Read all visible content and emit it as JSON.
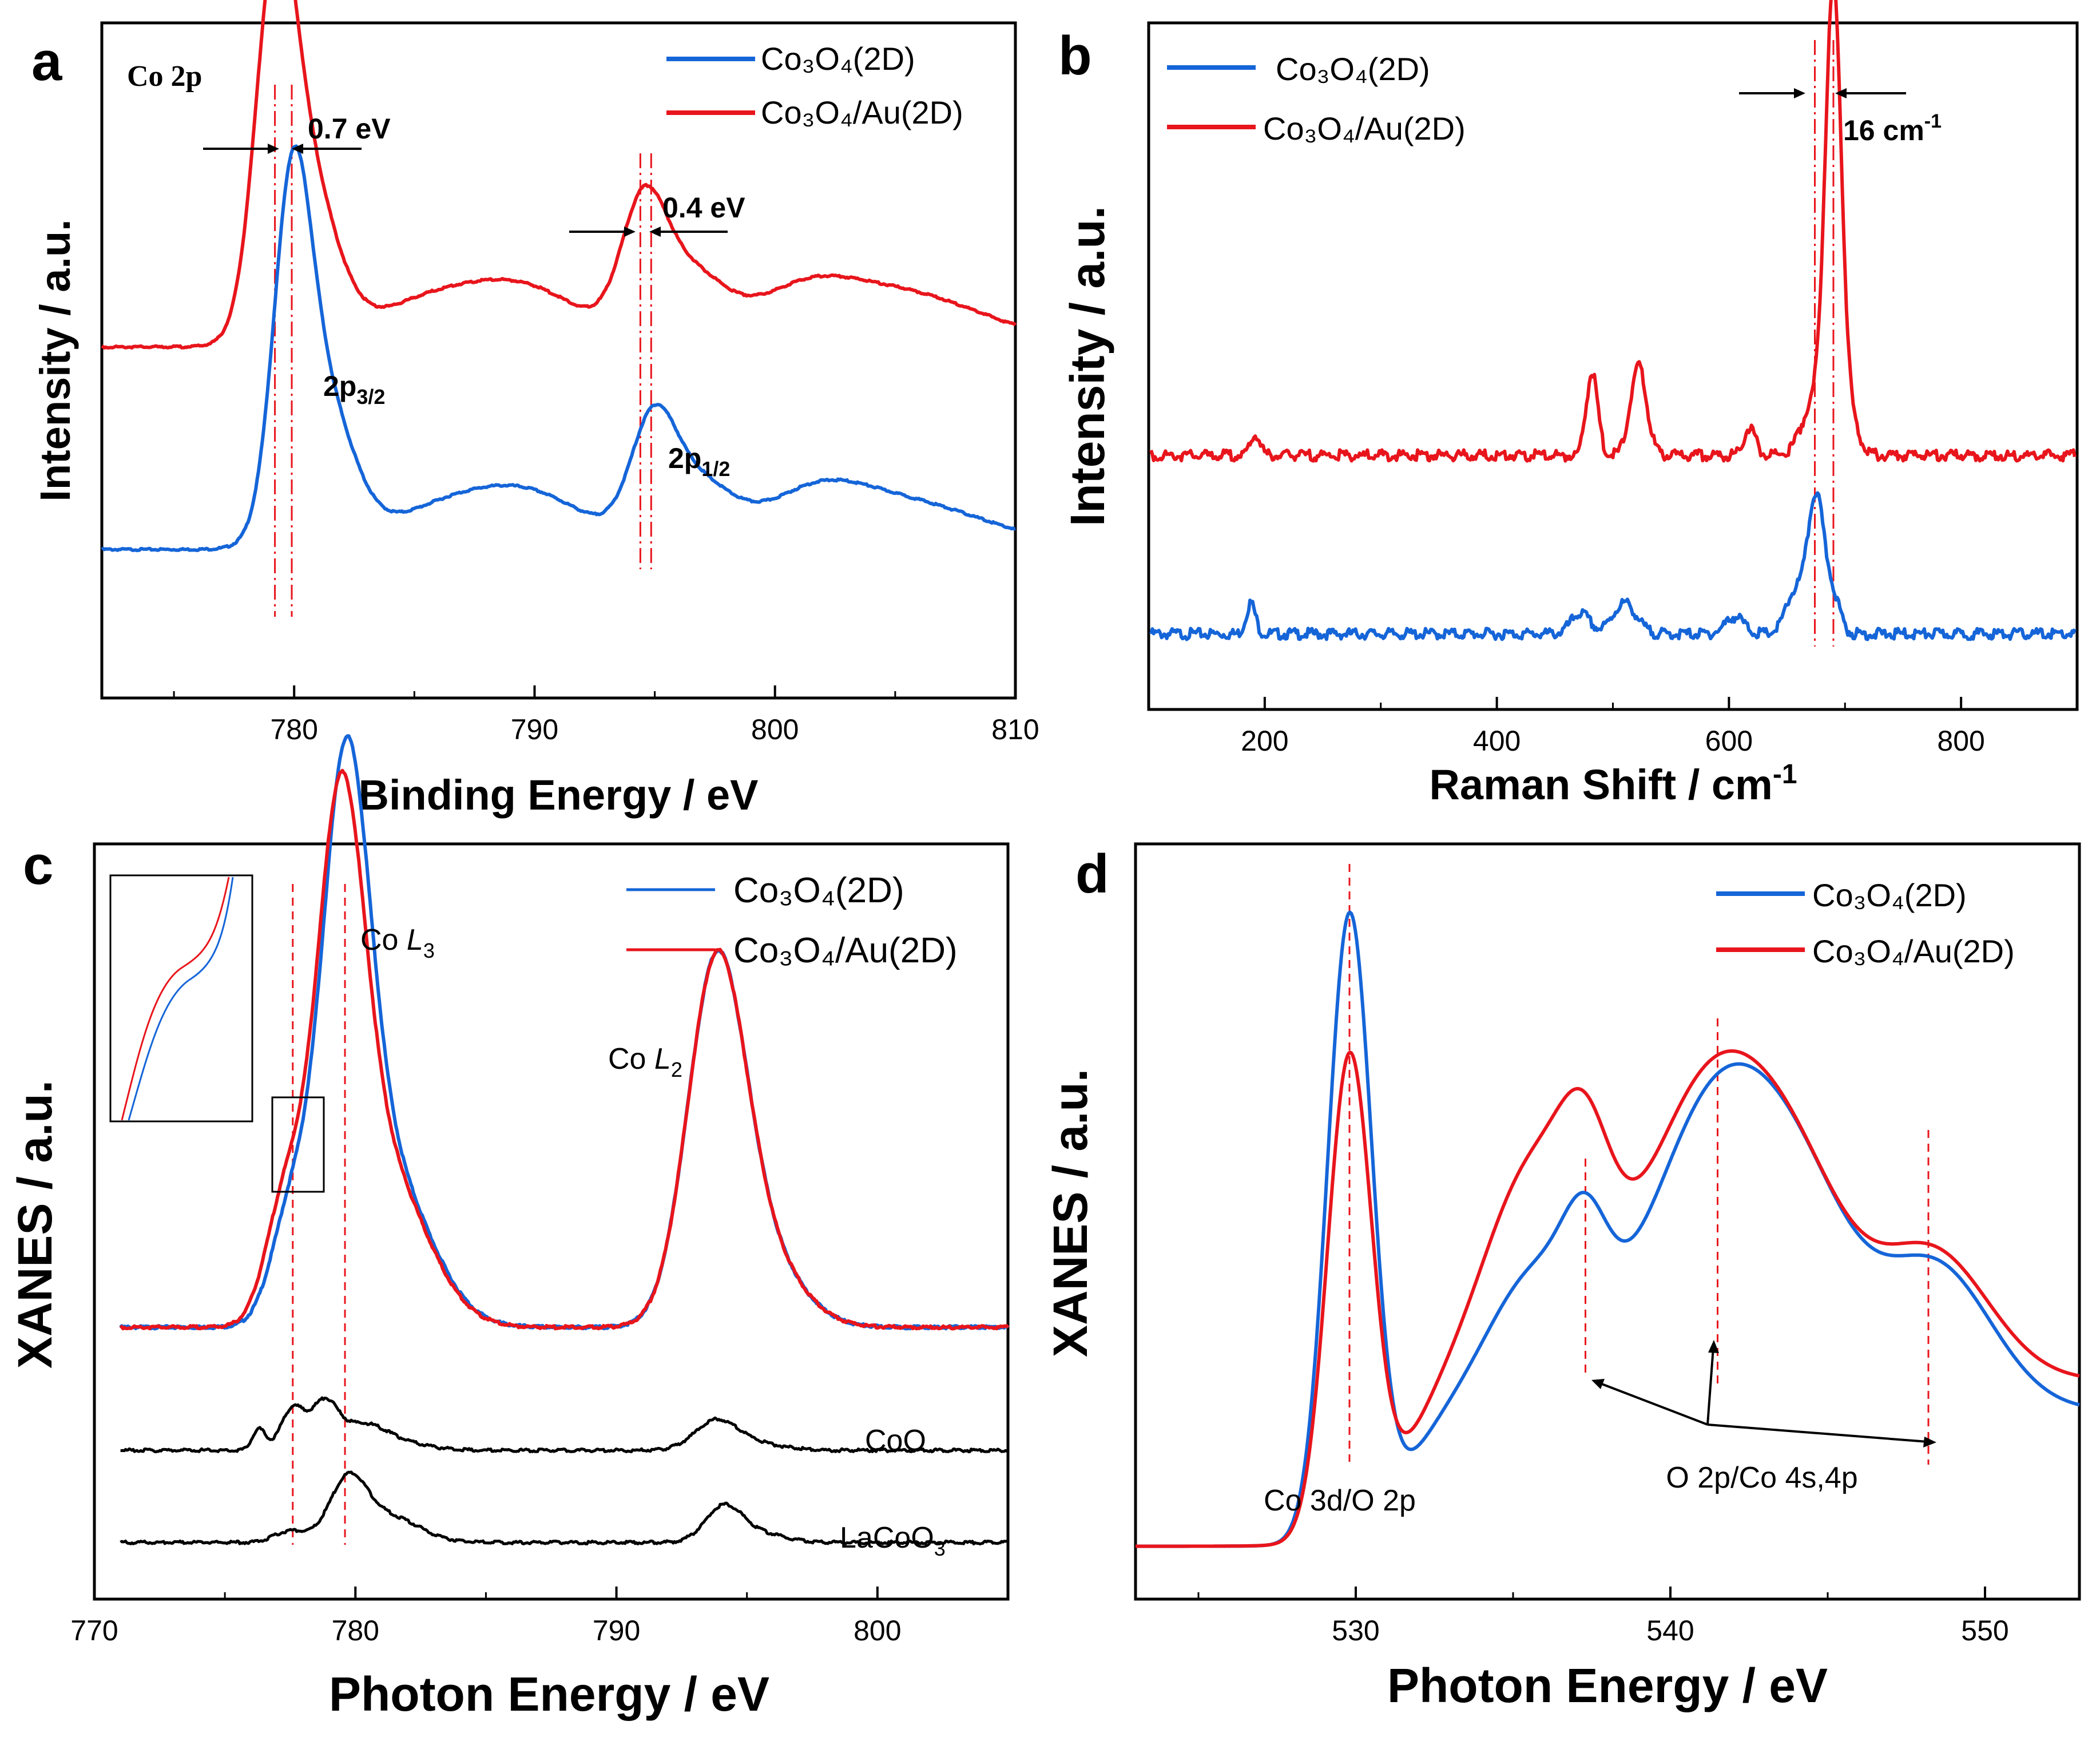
{
  "colors": {
    "blue": "#1565d8",
    "red": "#e8151c",
    "black": "#000000",
    "ref": "#e8151c"
  },
  "chart_data": [
    {
      "id": "a",
      "panel_label": "a",
      "type": "line",
      "xlabel": "Binding Energy / eV",
      "ylabel": "Intensity / a.u.",
      "xlim": [
        772,
        810
      ],
      "xticks": [
        "780",
        "790",
        "800",
        "810"
      ],
      "xtick_values": [
        780,
        790,
        800,
        810
      ],
      "inner_title": "Co 2p",
      "legend": [
        {
          "label": "Co₃O₄(2D)",
          "color": "#1565d8"
        },
        {
          "label": "Co₃O₄/Au(2D)",
          "color": "#e8151c"
        }
      ],
      "series": [
        {
          "name": "Co₃O₄(2D)",
          "color": "#1565d8",
          "baseline": 0.22,
          "peaks": [
            [
              779.9,
              0.42,
              0.75
            ],
            [
              781.0,
              0.24,
              1.3
            ],
            [
              785.5,
              0.04,
              2.2
            ],
            [
              789.5,
              0.085,
              2.6
            ],
            [
              794.9,
              0.14,
              0.9
            ],
            [
              796.5,
              0.1,
              1.6
            ],
            [
              801.5,
              0.05,
              2.0
            ],
            [
              804.5,
              0.055,
              3.5
            ],
            [
              806.5,
              0.02,
              4.0
            ]
          ],
          "slope": 0.003
        },
        {
          "name": "Co₃O₄/Au(2D)",
          "color": "#e8151c",
          "baseline": 0.52,
          "peaks": [
            [
              779.2,
              0.43,
              0.8
            ],
            [
              780.3,
              0.27,
              1.3
            ],
            [
              785.0,
              0.05,
              2.2
            ],
            [
              789.3,
              0.09,
              2.6
            ],
            [
              794.5,
              0.16,
              0.9
            ],
            [
              796.2,
              0.11,
              1.6
            ],
            [
              801.0,
              0.05,
              2.0
            ],
            [
              804.5,
              0.065,
              3.5
            ],
            [
              806.5,
              0.02,
              4.0
            ]
          ],
          "slope": 0.003
        }
      ],
      "ref_lines": [
        779.2,
        779.9,
        794.4,
        794.85
      ],
      "annotations": [
        {
          "text": "0.7 eV"
        },
        {
          "text": "0.4 eV"
        },
        {
          "text": "2p",
          "sub": "3/2"
        },
        {
          "text": "2p",
          "sub": "1/2"
        }
      ]
    },
    {
      "id": "b",
      "panel_label": "b",
      "type": "line",
      "xlabel": "Raman Shift / cm",
      "xlabel_sup": "-1",
      "ylabel": "Intensity / a.u.",
      "xlim": [
        100,
        900
      ],
      "xticks": [
        "200",
        "400",
        "600",
        "800"
      ],
      "xtick_values": [
        200,
        400,
        600,
        800
      ],
      "legend": [
        {
          "label": "Co₃O₄(2D)",
          "color": "#1565d8"
        },
        {
          "label": "Co₃O₄/Au(2D)",
          "color": "#e8151c"
        }
      ],
      "series": [
        {
          "name": "Co₃O₄(2D)",
          "color": "#1565d8",
          "baseline": 0.11,
          "peaks": [
            [
              188,
              0.045,
              4
            ],
            [
              472,
              0.03,
              8
            ],
            [
              510,
              0.045,
              10
            ],
            [
              605,
              0.025,
              8
            ],
            [
              657,
              0.06,
              8
            ],
            [
              675,
              0.2,
              7
            ],
            [
              690,
              0.05,
              6
            ]
          ]
        },
        {
          "name": "Co₃O₄/Au(2D)",
          "color": "#e8151c",
          "baseline": 0.37,
          "peaks": [
            [
              192,
              0.03,
              4
            ],
            [
              482,
              0.12,
              5
            ],
            [
              522,
              0.13,
              7
            ],
            [
              618,
              0.04,
              5
            ],
            [
              672,
              0.07,
              10
            ],
            [
              690,
              0.67,
              7
            ],
            [
              705,
              0.04,
              8
            ]
          ]
        }
      ],
      "ref_lines": [
        674,
        690
      ],
      "annotations": [
        {
          "text": "16 cm",
          "sup": "-1"
        }
      ]
    },
    {
      "id": "c",
      "panel_label": "c",
      "type": "line",
      "xlabel": "Photon Energy / eV",
      "ylabel": "XANES / a.u.",
      "xlim": [
        770,
        805
      ],
      "xticks": [
        "770",
        "780",
        "790",
        "800"
      ],
      "xtick_values": [
        770,
        780,
        790,
        800
      ],
      "legend": [
        {
          "label": "Co₃O₄(2D)",
          "color": "#1565d8"
        },
        {
          "label": "Co₃O₄/Au(2D)",
          "color": "#e8151c"
        }
      ],
      "series": [
        {
          "name": "Co₃O₄(2D)",
          "color": "#1565d8",
          "baseline": 0.36,
          "peaks": [
            [
              777.5,
              0.13,
              0.75
            ],
            [
              779.6,
              0.62,
              0.9
            ],
            [
              781.0,
              0.22,
              1.7
            ],
            [
              793.8,
              0.44,
              1.1
            ],
            [
              795.4,
              0.1,
              1.5
            ]
          ],
          "edges": [
            [
              779.0,
              0.0,
              1.0
            ],
            [
              794.0,
              0.0,
              1.0
            ]
          ]
        },
        {
          "name": "Co₃O₄/Au(2D)",
          "color": "#e8151c",
          "baseline": 0.36,
          "peaks": [
            [
              777.3,
              0.15,
              0.75
            ],
            [
              779.4,
              0.58,
              0.9
            ],
            [
              780.9,
              0.22,
              1.7
            ],
            [
              793.8,
              0.44,
              1.1
            ],
            [
              795.4,
              0.1,
              1.5
            ]
          ]
        },
        {
          "name": "CoO",
          "color": "#000000",
          "baseline": 0.197,
          "peaks": [
            [
              776.3,
              0.028,
              0.25
            ],
            [
              777.6,
              0.055,
              0.45
            ],
            [
              778.8,
              0.058,
              0.5
            ],
            [
              780.2,
              0.03,
              0.9
            ],
            [
              781.5,
              0.01,
              1.2
            ],
            [
              793.8,
              0.035,
              0.8
            ],
            [
              795.0,
              0.01,
              1.2
            ]
          ]
        },
        {
          "name": "LaCoO₃",
          "color": "#000000",
          "baseline": 0.075,
          "peaks": [
            [
              777.5,
              0.015,
              0.6
            ],
            [
              779.7,
              0.075,
              0.7
            ],
            [
              781.2,
              0.035,
              1.2
            ],
            [
              794.1,
              0.045,
              0.7
            ],
            [
              795.4,
              0.012,
              1.0
            ]
          ]
        }
      ],
      "ref_lines": [
        777.6,
        779.6
      ],
      "annotations": [
        {
          "text": "Co ",
          "ital": "L",
          "sub": "3"
        },
        {
          "text": "Co ",
          "ital": "L",
          "sub": "2"
        },
        {
          "text": "CoO"
        },
        {
          "text": "LaCoO",
          "sub": "3"
        }
      ]
    },
    {
      "id": "d",
      "panel_label": "d",
      "type": "line",
      "xlabel": "Photon Energy / eV",
      "ylabel": "XANES / a.u.",
      "xlim": [
        523,
        553
      ],
      "xticks": [
        "530",
        "540",
        "550"
      ],
      "xtick_values": [
        530,
        540,
        550
      ],
      "legend": [
        {
          "label": "Co₃O₄(2D)",
          "color": "#1565d8"
        },
        {
          "label": "Co₃O₄/Au(2D)",
          "color": "#e8151c"
        }
      ],
      "series": [
        {
          "name": "Co₃O₄(2D)",
          "color": "#1565d8",
          "baseline": 0.07,
          "peaks": [
            [
              529.8,
              0.82,
              0.7
            ],
            [
              535.8,
              0.18,
              1.6
            ],
            [
              537.3,
              0.11,
              0.7
            ],
            [
              541.6,
              0.42,
              2.2
            ],
            [
              544.5,
              0.15,
              1.6
            ],
            [
              548.4,
              0.19,
              1.8
            ]
          ],
          "step": [
            531.5,
            0.18,
            0.8
          ]
        },
        {
          "name": "Co₃O₄/Au(2D)",
          "color": "#e8151c",
          "baseline": 0.07,
          "peaks": [
            [
              529.8,
              0.63,
              0.7
            ],
            [
              535.7,
              0.28,
              1.6
            ],
            [
              537.3,
              0.14,
              0.8
            ],
            [
              541.4,
              0.4,
              2.2
            ],
            [
              544.3,
              0.14,
              1.6
            ],
            [
              548.3,
              0.17,
              1.8
            ]
          ],
          "step": [
            531.5,
            0.22,
            0.8
          ]
        }
      ],
      "ref_lines": [
        529.8,
        537.3,
        541.5,
        548.2
      ],
      "annotations": [
        {
          "text": "Co 3d/O 2p"
        },
        {
          "text": "O 2p/Co 4s,4p"
        }
      ]
    }
  ]
}
